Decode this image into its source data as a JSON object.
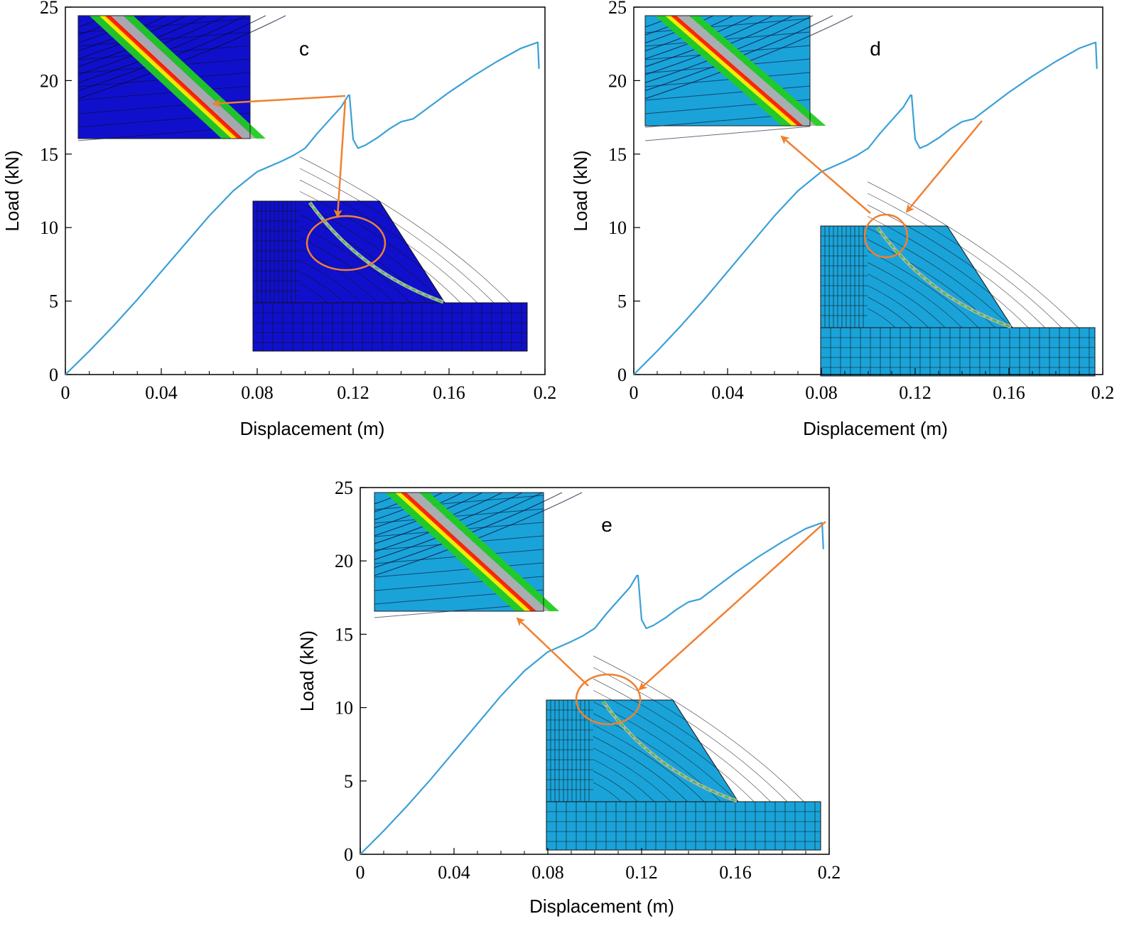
{
  "colors": {
    "curve": "#3aa0d8",
    "arrow": "#f08030",
    "mesh_dark": "#1010cc",
    "mesh_light": "#1aa3d9",
    "band_gray": "#b0b0b0",
    "band_green": "#22cc22",
    "band_yellow": "#ffee00",
    "band_red": "#ff2000"
  },
  "chart_data": [
    {
      "type": "line",
      "panel": "c",
      "xlabel": "Displacement (m)",
      "ylabel": "Load (kN)",
      "xlim": [
        0,
        0.2
      ],
      "ylim": [
        0,
        25
      ],
      "xticks": [
        "0",
        "0.04",
        "0.08",
        "0.12",
        "0.16",
        "0.2"
      ],
      "yticks": [
        "0",
        "5",
        "10",
        "15",
        "20",
        "25"
      ],
      "x": [
        0,
        0.01,
        0.02,
        0.03,
        0.04,
        0.05,
        0.06,
        0.07,
        0.08,
        0.09,
        0.095,
        0.1,
        0.105,
        0.11,
        0.115,
        0.118,
        0.1185,
        0.12,
        0.122,
        0.125,
        0.13,
        0.135,
        0.14,
        0.145,
        0.15,
        0.16,
        0.17,
        0.18,
        0.19,
        0.197,
        0.1975
      ],
      "series": [
        {
          "name": "Load",
          "values": [
            0,
            1.6,
            3.3,
            5.1,
            7.0,
            8.9,
            10.8,
            12.5,
            13.8,
            14.5,
            14.9,
            15.4,
            16.4,
            17.3,
            18.2,
            19.0,
            19.0,
            16.0,
            15.4,
            15.6,
            16.1,
            16.7,
            17.2,
            17.4,
            18.0,
            19.2,
            20.3,
            21.3,
            22.2,
            22.6,
            20.8
          ]
        }
      ],
      "inset_label": "c"
    },
    {
      "type": "line",
      "panel": "d",
      "xlabel": "Displacement (m)",
      "ylabel": "Load (kN)",
      "xlim": [
        0,
        0.2
      ],
      "ylim": [
        0,
        25
      ],
      "xticks": [
        "0",
        "0.04",
        "0.08",
        "0.12",
        "0.16",
        "0.2"
      ],
      "yticks": [
        "0",
        "5",
        "10",
        "15",
        "20",
        "25"
      ],
      "x": [
        0,
        0.01,
        0.02,
        0.03,
        0.04,
        0.05,
        0.06,
        0.07,
        0.08,
        0.09,
        0.095,
        0.1,
        0.105,
        0.11,
        0.115,
        0.118,
        0.1185,
        0.12,
        0.122,
        0.125,
        0.13,
        0.135,
        0.14,
        0.145,
        0.15,
        0.16,
        0.17,
        0.18,
        0.19,
        0.197,
        0.1975
      ],
      "series": [
        {
          "name": "Load",
          "values": [
            0,
            1.6,
            3.3,
            5.1,
            7.0,
            8.9,
            10.8,
            12.5,
            13.8,
            14.5,
            14.9,
            15.4,
            16.4,
            17.3,
            18.2,
            19.0,
            19.0,
            16.0,
            15.4,
            15.6,
            16.1,
            16.7,
            17.2,
            17.4,
            18.0,
            19.2,
            20.3,
            21.3,
            22.2,
            22.6,
            20.8
          ]
        }
      ],
      "inset_label": "d"
    },
    {
      "type": "line",
      "panel": "e",
      "xlabel": "Displacement (m)",
      "ylabel": "Load (kN)",
      "xlim": [
        0,
        0.2
      ],
      "ylim": [
        0,
        25
      ],
      "xticks": [
        "0",
        "0.04",
        "0.08",
        "0.12",
        "0.16",
        "0.2"
      ],
      "yticks": [
        "0",
        "5",
        "10",
        "15",
        "20",
        "25"
      ],
      "x": [
        0,
        0.01,
        0.02,
        0.03,
        0.04,
        0.05,
        0.06,
        0.07,
        0.08,
        0.09,
        0.095,
        0.1,
        0.105,
        0.11,
        0.115,
        0.118,
        0.1185,
        0.12,
        0.122,
        0.125,
        0.13,
        0.135,
        0.14,
        0.145,
        0.15,
        0.16,
        0.17,
        0.18,
        0.19,
        0.197,
        0.1975
      ],
      "series": [
        {
          "name": "Load",
          "values": [
            0,
            1.6,
            3.3,
            5.1,
            7.0,
            8.9,
            10.8,
            12.5,
            13.8,
            14.5,
            14.9,
            15.4,
            16.4,
            17.3,
            18.2,
            19.0,
            19.0,
            16.0,
            15.4,
            15.6,
            16.1,
            16.7,
            17.2,
            17.4,
            18.0,
            19.2,
            20.3,
            21.3,
            22.2,
            22.6,
            20.8
          ]
        }
      ],
      "inset_label": "e"
    }
  ]
}
